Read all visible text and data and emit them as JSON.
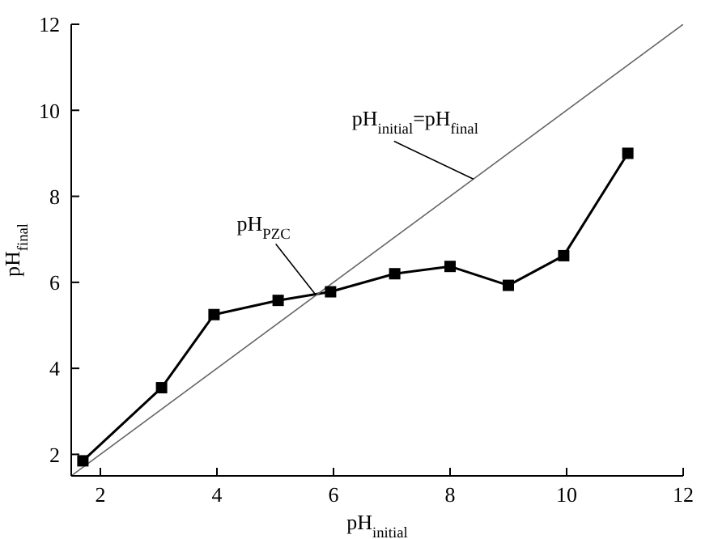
{
  "chart_data": {
    "type": "line",
    "xlabel": "pH$_{initial}$",
    "ylabel": "pH$_{final}$",
    "xlim": [
      1.5,
      12
    ],
    "ylim": [
      1.5,
      12
    ],
    "xticks": [
      2,
      4,
      6,
      8,
      10,
      12
    ],
    "yticks": [
      2,
      4,
      6,
      8,
      10,
      12
    ],
    "grid": false,
    "legend": false,
    "series": [
      {
        "color": "#000000",
        "marker": "square",
        "x": [
          1.7,
          3.05,
          3.95,
          5.05,
          5.95,
          7.05,
          8.0,
          9.0,
          9.95,
          11.05
        ],
        "values": [
          1.85,
          3.55,
          5.25,
          5.58,
          5.78,
          6.2,
          6.37,
          5.93,
          6.62,
          9.0
        ]
      },
      {
        "color": "#666666",
        "marker": "none",
        "x": [
          1.5,
          12
        ],
        "values": [
          1.5,
          12
        ]
      }
    ],
    "annotations": [
      {
        "text": "pH$_{PZC}$",
        "x": 5.7,
        "y": 5.7
      },
      {
        "text": "pH$_{initial}$=pH$_{final}$",
        "x": 8.4,
        "y": 8.4
      }
    ]
  }
}
